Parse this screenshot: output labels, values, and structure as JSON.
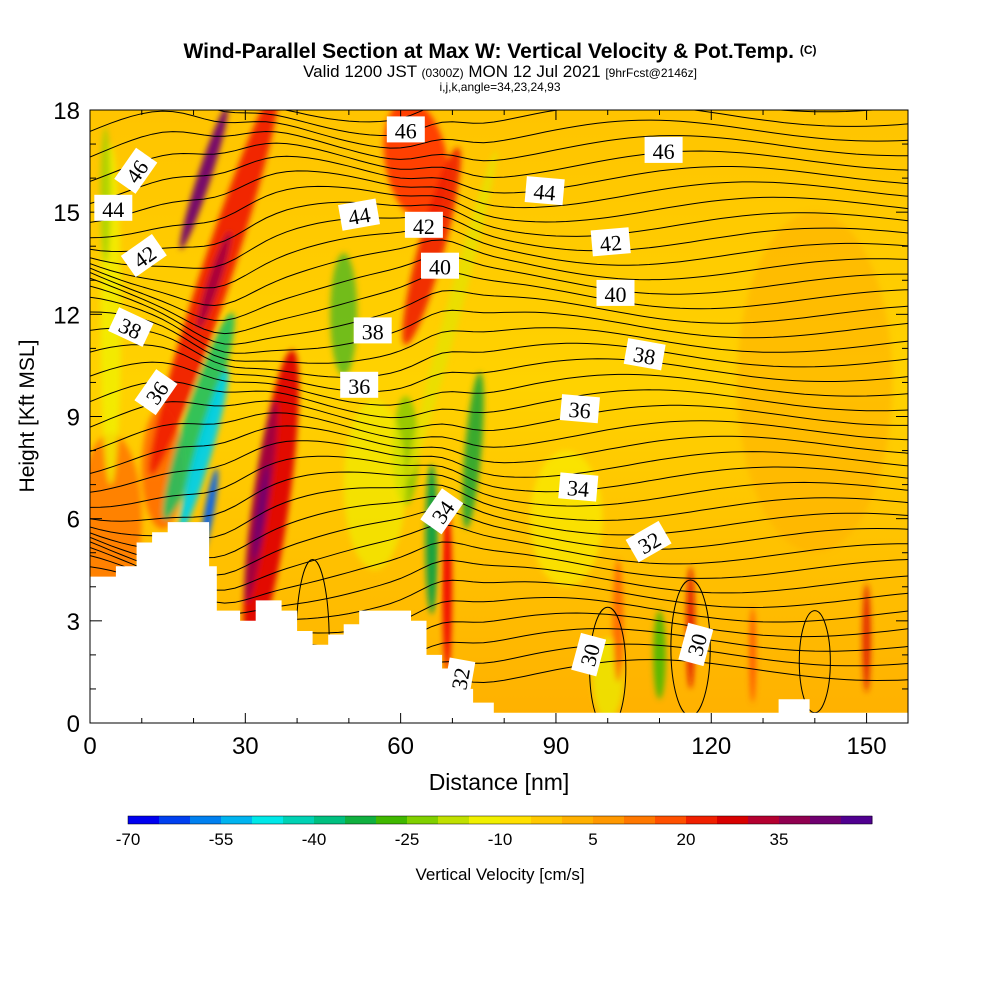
{
  "header": {
    "title": "Wind-Parallel Section at Max W: Vertical Velocity & Pot.Temp.",
    "title_mark": "(C)",
    "valid_prefix": "Valid 1200 JST",
    "valid_utc": "(0300Z)",
    "valid_date": "MON 12 Jul 2021",
    "forecast_info": "[9hrFcst@2146z]",
    "index_line": "i,j,k,angle=34,23,24,93"
  },
  "chart_data": {
    "type": "heatmap",
    "xlabel": "Distance [nm]",
    "ylabel": "Height [Kft MSL]",
    "xlim": [
      0,
      158
    ],
    "ylim": [
      0,
      18
    ],
    "x_ticks": [
      0,
      30,
      60,
      90,
      120,
      150
    ],
    "y_ticks": [
      0,
      3,
      6,
      9,
      12,
      15,
      18
    ],
    "grid": false,
    "colorbar": {
      "label": "Vertical Velocity [cm/s]",
      "min": -70,
      "max": 45,
      "step": 5,
      "tick_values": [
        -70,
        -55,
        -40,
        -25,
        -10,
        5,
        20,
        35
      ],
      "colors": [
        "#0000f0",
        "#0040f0",
        "#0080f0",
        "#00b4f0",
        "#00e8e8",
        "#00d2b4",
        "#00c080",
        "#10b040",
        "#40b800",
        "#80d000",
        "#c0e000",
        "#f0f000",
        "#ffe000",
        "#ffc800",
        "#ffb000",
        "#ff9800",
        "#ff7800",
        "#ff5000",
        "#f02000",
        "#d80000",
        "#b40030",
        "#900050",
        "#700070",
        "#500090"
      ]
    },
    "contour_labels": [
      {
        "text": "46",
        "x": 9,
        "y": 16.2,
        "rot": -55
      },
      {
        "text": "44",
        "x": 4.5,
        "y": 15.1,
        "rot": 0
      },
      {
        "text": "42",
        "x": 10.5,
        "y": 13.7,
        "rot": -35
      },
      {
        "text": "38",
        "x": 7.8,
        "y": 11.6,
        "rot": 25
      },
      {
        "text": "36",
        "x": 12.9,
        "y": 9.7,
        "rot": -55
      },
      {
        "text": "46",
        "x": 61,
        "y": 17.4,
        "rot": 0
      },
      {
        "text": "44",
        "x": 52,
        "y": 14.9,
        "rot": -10
      },
      {
        "text": "42",
        "x": 64.5,
        "y": 14.6,
        "rot": 0
      },
      {
        "text": "40",
        "x": 67.6,
        "y": 13.4,
        "rot": 0
      },
      {
        "text": "38",
        "x": 54.6,
        "y": 11.5,
        "rot": 0
      },
      {
        "text": "36",
        "x": 52,
        "y": 9.9,
        "rot": 0
      },
      {
        "text": "34",
        "x": 68.1,
        "y": 6.2,
        "rot": -55
      },
      {
        "text": "46",
        "x": 110.8,
        "y": 16.8,
        "rot": 0
      },
      {
        "text": "44",
        "x": 87.8,
        "y": 15.6,
        "rot": 5
      },
      {
        "text": "42",
        "x": 100.6,
        "y": 14.1,
        "rot": -5
      },
      {
        "text": "40",
        "x": 101.5,
        "y": 12.6,
        "rot": 0
      },
      {
        "text": "38",
        "x": 107.1,
        "y": 10.8,
        "rot": 10
      },
      {
        "text": "36",
        "x": 94.6,
        "y": 9.2,
        "rot": 5
      },
      {
        "text": "34",
        "x": 94.3,
        "y": 6.9,
        "rot": 5
      },
      {
        "text": "32",
        "x": 108,
        "y": 5.3,
        "rot": -30
      },
      {
        "text": "30",
        "x": 96.5,
        "y": 2.0,
        "rot": -75
      },
      {
        "text": "30",
        "x": 117.2,
        "y": 2.3,
        "rot": -75
      },
      {
        "text": "32",
        "x": 71.5,
        "y": 1.3,
        "rot": -80
      }
    ]
  }
}
